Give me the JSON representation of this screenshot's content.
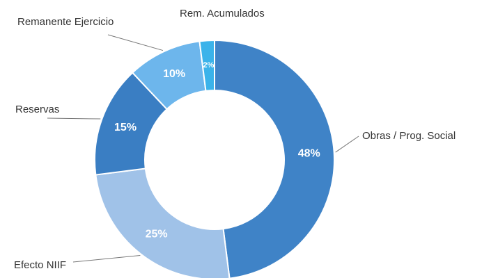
{
  "chart_data": {
    "type": "donut",
    "categories": [
      "Obras / Prog. Social",
      "Efecto NIIF",
      "Reservas",
      "Remanente Ejercicio",
      "Rem. Acumulados"
    ],
    "values": [
      48,
      25,
      15,
      10,
      2
    ],
    "value_labels": [
      "48%",
      "25%",
      "15%",
      "10%",
      "2%"
    ],
    "colors": [
      "#3f83c7",
      "#a0c2e8",
      "#3a7ec3",
      "#6db6ec",
      "#3bb3ea"
    ]
  }
}
